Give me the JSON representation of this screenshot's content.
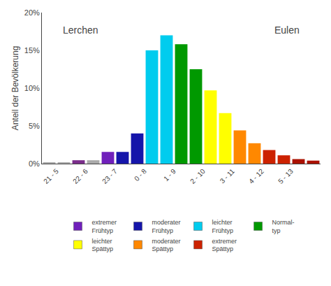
{
  "chart_data": {
    "type": "bar",
    "ylabel": "Anteil der Bevölkerung",
    "categories": [
      "21 - 5",
      null,
      "22 - 6",
      null,
      "23 - 7",
      null,
      "0 - 8",
      null,
      "1 - 9",
      null,
      "2 - 10",
      null,
      "3 - 11",
      null,
      "4 - 12",
      null,
      "5 - 13",
      null,
      null
    ],
    "values": [
      0.18,
      0.18,
      0.45,
      0.45,
      1.55,
      1.55,
      4.0,
      15.0,
      17.0,
      15.8,
      12.5,
      9.7,
      6.7,
      4.4,
      2.7,
      1.8,
      1.1,
      0.6,
      0.4
    ],
    "colors": [
      "#aaaaaa",
      "#aaaaaa",
      "#7B2D8B",
      "#aaaaaa",
      "#7020BB",
      "#1515AA",
      "#1515AA",
      "#00CCEE",
      "#00CCEE",
      "#009900",
      "#009900",
      "#FFFF00",
      "#FFFF00",
      "#FF8800",
      "#FF8800",
      "#CC2200",
      "#CC2200",
      "#AA1100",
      "#AA1100"
    ],
    "ylim": [
      0,
      20
    ],
    "yticks": [
      {
        "value": 0,
        "label": "0%"
      },
      {
        "value": 5,
        "label": "5%"
      },
      {
        "value": 10,
        "label": "10%"
      },
      {
        "value": 15,
        "label": "15%"
      },
      {
        "value": 20,
        "label": "20%"
      }
    ],
    "annotations": [
      "Lerchen",
      "Eulen"
    ],
    "legend": "bottom",
    "legend_entries": [
      {
        "name": "extremer\nFrühtyp",
        "color": "#7020BB"
      },
      {
        "name": "moderater\nFrühtyp",
        "color": "#1515AA"
      },
      {
        "name": "leichter\nFrühtyp",
        "color": "#00CCEE"
      },
      {
        "name": "Normal-\ntyp",
        "color": "#009900"
      },
      {
        "name": "leichter\nSpättyp",
        "color": "#FFFF00"
      },
      {
        "name": "moderater\nSpättyp",
        "color": "#FF8800"
      },
      {
        "name": "extremer\nSpättyp",
        "color": "#CC2200"
      }
    ],
    "grid": false
  }
}
